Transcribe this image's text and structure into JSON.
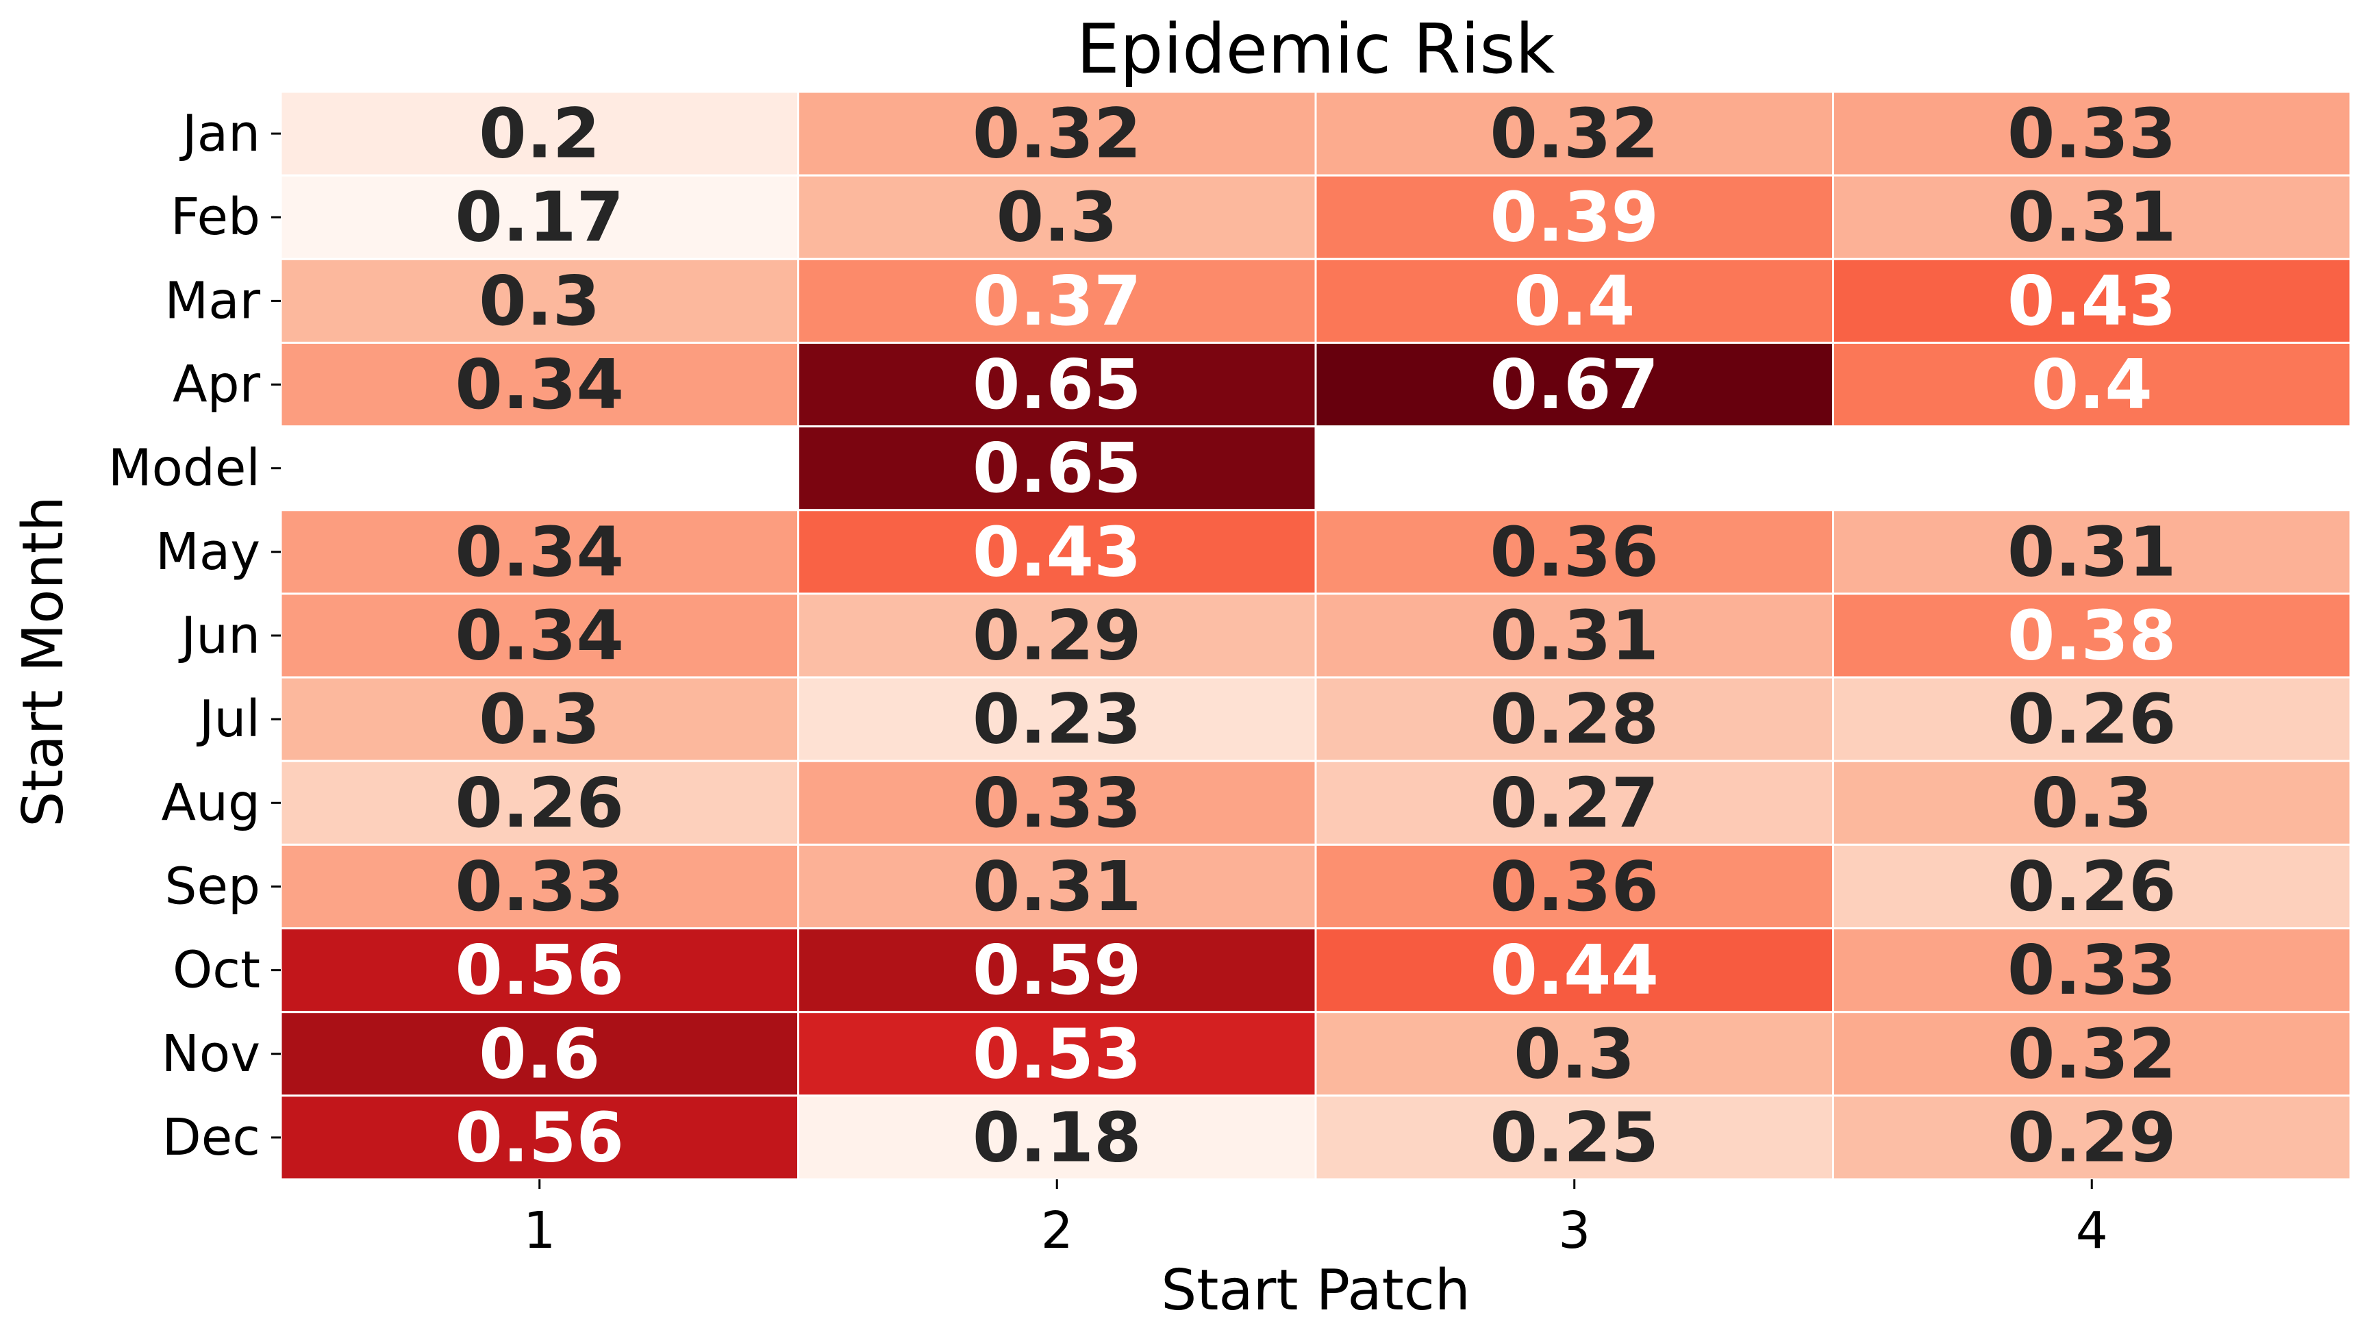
{
  "chart_data": {
    "type": "heatmap",
    "title": "Epidemic Risk",
    "xlabel": "Start Patch",
    "ylabel": "Start Month",
    "x_categories": [
      "1",
      "2",
      "3",
      "4"
    ],
    "y_categories": [
      "Jan",
      "Feb",
      "Mar",
      "Apr",
      "Model",
      "May",
      "Jun",
      "Jul",
      "Aug",
      "Sep",
      "Oct",
      "Nov",
      "Dec"
    ],
    "values": [
      [
        0.2,
        0.32,
        0.32,
        0.33
      ],
      [
        0.17,
        0.3,
        0.39,
        0.31
      ],
      [
        0.3,
        0.37,
        0.4,
        0.43
      ],
      [
        0.34,
        0.65,
        0.67,
        0.4
      ],
      [
        null,
        0.65,
        null,
        null
      ],
      [
        0.34,
        0.43,
        0.36,
        0.31
      ],
      [
        0.34,
        0.29,
        0.31,
        0.38
      ],
      [
        0.3,
        0.23,
        0.28,
        0.26
      ],
      [
        0.26,
        0.33,
        0.27,
        0.3
      ],
      [
        0.33,
        0.31,
        0.36,
        0.26
      ],
      [
        0.56,
        0.59,
        0.44,
        0.33
      ],
      [
        0.6,
        0.53,
        0.3,
        0.32
      ],
      [
        0.56,
        0.18,
        0.25,
        0.29
      ]
    ],
    "colormap": "Reds",
    "vmin": 0.17,
    "vmax": 0.67,
    "annotations": true,
    "colorbar": false,
    "grid": false
  }
}
